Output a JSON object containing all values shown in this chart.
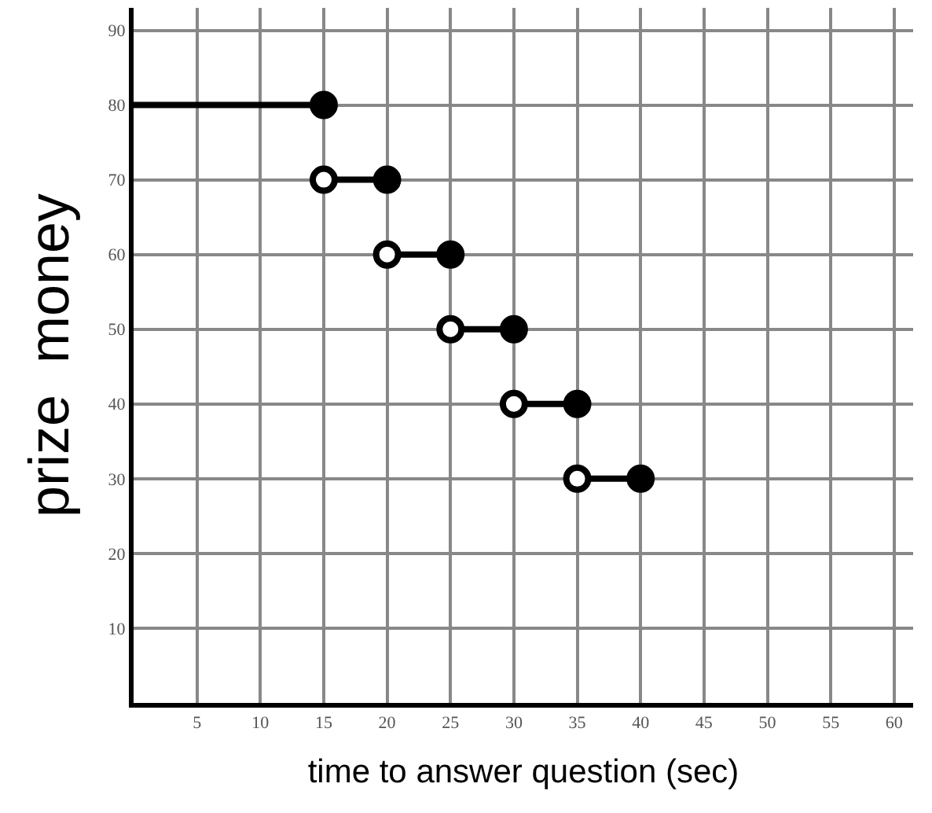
{
  "chart_data": {
    "type": "line",
    "xlabel": "time to answer question (sec)",
    "ylabel": "prize  money",
    "xlim": [
      0,
      61.5
    ],
    "ylim": [
      0,
      93
    ],
    "xticks": [
      5,
      10,
      15,
      20,
      25,
      30,
      35,
      40,
      45,
      50,
      55,
      60
    ],
    "yticks": [
      10,
      20,
      30,
      40,
      50,
      60,
      70,
      80,
      90
    ],
    "grid": true,
    "marker": "circle",
    "line_style": "solid",
    "series": [
      {
        "color": "#000000",
        "x": [
          0,
          15
        ],
        "values": [
          80,
          80
        ],
        "marker": "none"
      },
      {
        "color": "#000000",
        "x": [
          15,
          20
        ],
        "values": [
          70,
          70
        ],
        "marker": "none"
      },
      {
        "color": "#000000",
        "x": [
          20,
          25
        ],
        "values": [
          60,
          60
        ],
        "marker": "none"
      },
      {
        "color": "#000000",
        "x": [
          25,
          30
        ],
        "values": [
          50,
          50
        ],
        "marker": "none"
      },
      {
        "color": "#000000",
        "x": [
          30,
          35
        ],
        "values": [
          40,
          40
        ],
        "marker": "none"
      },
      {
        "color": "#000000",
        "x": [
          35,
          40
        ],
        "values": [
          30,
          30
        ],
        "marker": "none"
      },
      {
        "type": "scatter",
        "color": "#000000",
        "x": [
          15,
          20,
          25,
          30,
          35,
          40
        ],
        "values": [
          80,
          70,
          60,
          50,
          40,
          30
        ]
      },
      {
        "type": "scatter",
        "color": "#ffffff",
        "x": [
          15,
          20,
          25,
          30,
          35
        ],
        "values": [
          70,
          60,
          50,
          40,
          30
        ]
      }
    ]
  }
}
